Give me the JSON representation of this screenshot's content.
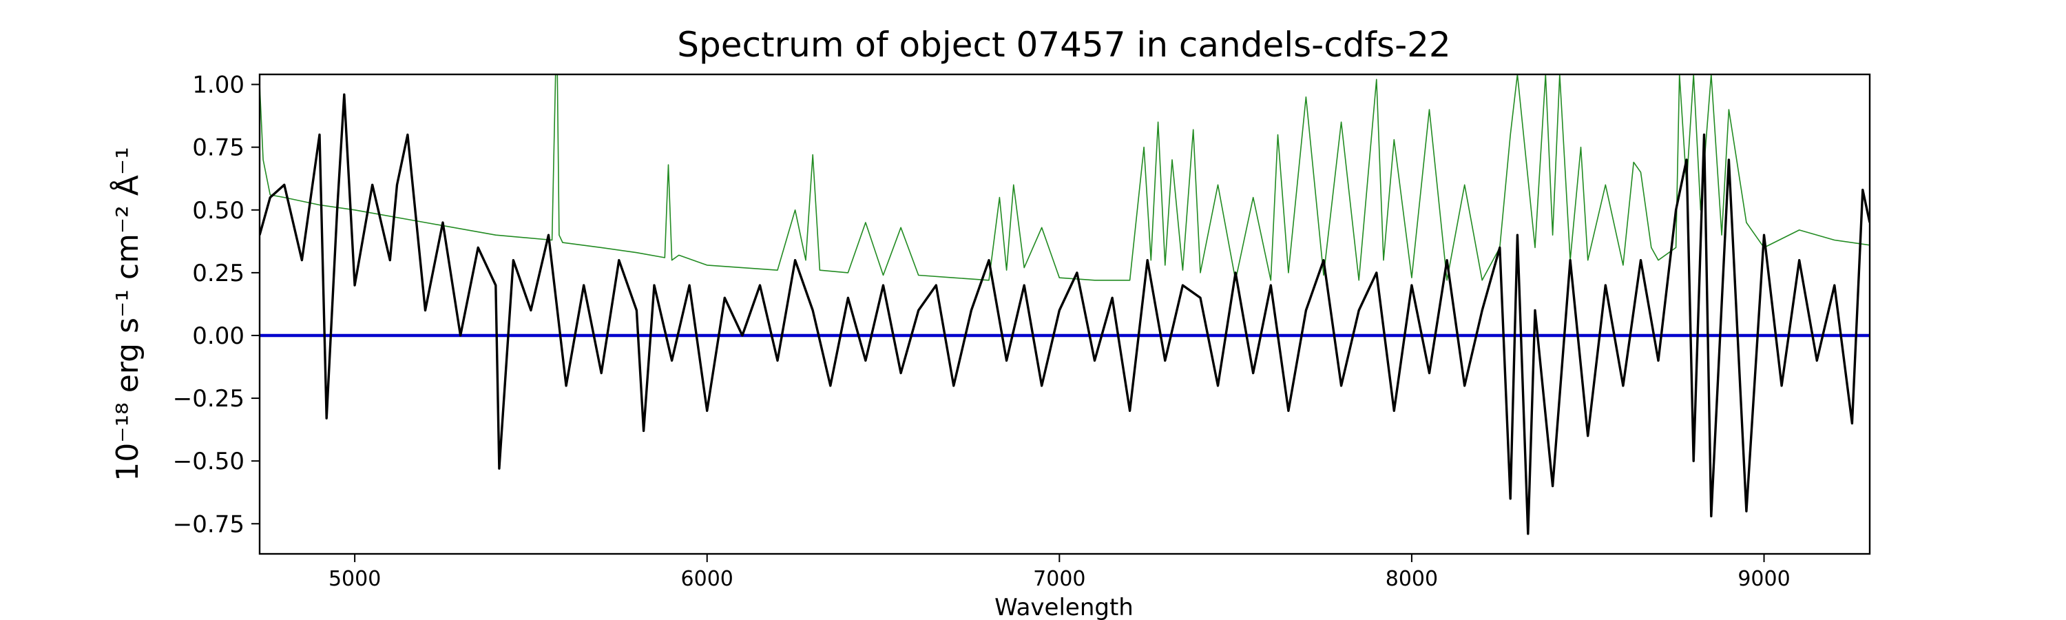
{
  "chart_data": {
    "type": "line",
    "title": "Spectrum of object 07457 in candels-cdfs-22",
    "xlabel": "Wavelength",
    "ylabel": "10⁻¹⁸ erg s⁻¹ cm⁻² Å⁻¹",
    "xlim": [
      4730,
      9300
    ],
    "ylim": [
      -0.87,
      1.04
    ],
    "xticks": [
      5000,
      6000,
      7000,
      8000,
      9000
    ],
    "yticks": [
      -0.75,
      -0.5,
      -0.25,
      0.0,
      0.25,
      0.5,
      0.75,
      1.0
    ],
    "ytick_labels": [
      "−0.75",
      "−0.50",
      "−0.25",
      "0.00",
      "0.25",
      "0.50",
      "0.75",
      "1.00"
    ],
    "grid": false,
    "series": [
      {
        "role": "flux",
        "color": "#000000",
        "x": [
          4730,
          4760,
          4800,
          4850,
          4900,
          4920,
          4950,
          4970,
          5000,
          5050,
          5100,
          5120,
          5150,
          5200,
          5250,
          5300,
          5350,
          5400,
          5410,
          5450,
          5500,
          5550,
          5600,
          5650,
          5700,
          5750,
          5800,
          5820,
          5850,
          5900,
          5950,
          6000,
          6050,
          6100,
          6150,
          6200,
          6250,
          6300,
          6350,
          6400,
          6450,
          6500,
          6550,
          6600,
          6650,
          6700,
          6750,
          6800,
          6850,
          6900,
          6950,
          7000,
          7050,
          7100,
          7150,
          7200,
          7250,
          7300,
          7350,
          7400,
          7450,
          7500,
          7550,
          7600,
          7650,
          7700,
          7750,
          7800,
          7850,
          7900,
          7950,
          8000,
          8050,
          8100,
          8150,
          8200,
          8250,
          8280,
          8300,
          8330,
          8350,
          8400,
          8450,
          8500,
          8550,
          8600,
          8650,
          8700,
          8750,
          8780,
          8800,
          8830,
          8850,
          8900,
          8950,
          9000,
          9050,
          9100,
          9150,
          9200,
          9250,
          9280,
          9300
        ],
        "y": [
          0.4,
          0.55,
          0.6,
          0.3,
          0.8,
          -0.33,
          0.5,
          0.96,
          0.2,
          0.6,
          0.3,
          0.6,
          0.8,
          0.1,
          0.45,
          0.0,
          0.35,
          0.2,
          -0.53,
          0.3,
          0.1,
          0.4,
          -0.2,
          0.2,
          -0.15,
          0.3,
          0.1,
          -0.38,
          0.2,
          -0.1,
          0.2,
          -0.3,
          0.15,
          0.0,
          0.2,
          -0.1,
          0.3,
          0.1,
          -0.2,
          0.15,
          -0.1,
          0.2,
          -0.15,
          0.1,
          0.2,
          -0.2,
          0.1,
          0.3,
          -0.1,
          0.2,
          -0.2,
          0.1,
          0.25,
          -0.1,
          0.15,
          -0.3,
          0.3,
          -0.1,
          0.2,
          0.15,
          -0.2,
          0.25,
          -0.15,
          0.2,
          -0.3,
          0.1,
          0.3,
          -0.2,
          0.1,
          0.25,
          -0.3,
          0.2,
          -0.15,
          0.3,
          -0.2,
          0.1,
          0.35,
          -0.65,
          0.4,
          -0.79,
          0.1,
          -0.6,
          0.3,
          -0.4,
          0.2,
          -0.2,
          0.3,
          -0.1,
          0.5,
          0.7,
          -0.5,
          0.8,
          -0.72,
          0.7,
          -0.7,
          0.4,
          -0.2,
          0.3,
          -0.1,
          0.2,
          -0.35,
          0.58,
          0.45
        ]
      },
      {
        "role": "noise",
        "color": "#228b22",
        "x": [
          4730,
          4740,
          4760,
          4800,
          4900,
          5000,
          5200,
          5400,
          5560,
          5570,
          5575,
          5580,
          5590,
          5700,
          5800,
          5880,
          5890,
          5900,
          5920,
          6000,
          6100,
          6200,
          6250,
          6280,
          6300,
          6320,
          6400,
          6450,
          6500,
          6550,
          6600,
          6700,
          6800,
          6830,
          6850,
          6870,
          6900,
          6950,
          7000,
          7100,
          7200,
          7240,
          7260,
          7280,
          7300,
          7320,
          7350,
          7380,
          7400,
          7450,
          7500,
          7550,
          7600,
          7620,
          7650,
          7700,
          7750,
          7800,
          7850,
          7900,
          7920,
          7950,
          8000,
          8050,
          8100,
          8150,
          8200,
          8250,
          8280,
          8300,
          8350,
          8380,
          8400,
          8420,
          8450,
          8480,
          8500,
          8550,
          8600,
          8630,
          8650,
          8680,
          8700,
          8750,
          8760,
          8780,
          8800,
          8820,
          8850,
          8880,
          8900,
          8950,
          9000,
          9100,
          9200,
          9300
        ],
        "y": [
          1.0,
          0.7,
          0.56,
          0.55,
          0.52,
          0.5,
          0.45,
          0.4,
          0.38,
          1.04,
          1.04,
          0.4,
          0.37,
          0.35,
          0.33,
          0.31,
          0.68,
          0.3,
          0.32,
          0.28,
          0.27,
          0.26,
          0.5,
          0.3,
          0.72,
          0.26,
          0.25,
          0.45,
          0.24,
          0.43,
          0.24,
          0.23,
          0.22,
          0.55,
          0.26,
          0.6,
          0.27,
          0.43,
          0.23,
          0.22,
          0.22,
          0.75,
          0.3,
          0.85,
          0.28,
          0.7,
          0.26,
          0.82,
          0.25,
          0.6,
          0.22,
          0.55,
          0.22,
          0.8,
          0.25,
          0.95,
          0.24,
          0.85,
          0.22,
          1.02,
          0.3,
          0.78,
          0.23,
          0.9,
          0.22,
          0.6,
          0.22,
          0.35,
          0.8,
          1.04,
          0.35,
          1.04,
          0.4,
          1.04,
          0.3,
          0.75,
          0.3,
          0.6,
          0.28,
          0.69,
          0.65,
          0.35,
          0.3,
          0.35,
          1.04,
          0.6,
          1.04,
          0.5,
          1.04,
          0.4,
          0.9,
          0.45,
          0.35,
          0.42,
          0.38,
          0.36
        ]
      },
      {
        "role": "continuum",
        "color": "#0000cd",
        "x": [
          4730,
          9300
        ],
        "y": [
          0.0,
          0.0
        ]
      }
    ]
  }
}
